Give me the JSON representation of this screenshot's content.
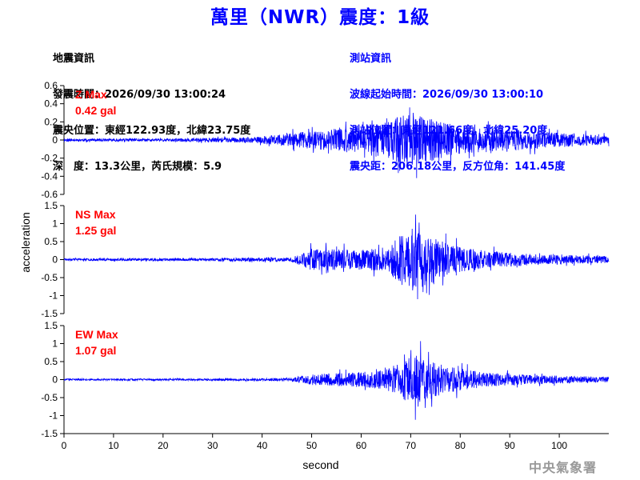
{
  "title": "萬里（NWR）震度：1級",
  "earthquake_info": {
    "heading": "地震資訊",
    "origin_time": "發震時間：2026/09/30 13:00:24",
    "epicenter": "震央位置：東經122.93度，北緯23.75度",
    "depth_magnitude": "深　度：13.3公里，芮氏規模：5.9"
  },
  "station_info": {
    "heading": "測站資訊",
    "wave_start": "波線起始時間：2026/09/30 13:00:10",
    "location": "測站位置：東經121.66度，北緯25.20度",
    "distance": "震央距：206.18公里，反方位角：141.45度"
  },
  "agency": "中央氣象署",
  "colors": {
    "trace": "#0000ff",
    "title": "#0000ff",
    "station_text": "#0000ff",
    "max_label": "#ff0000",
    "agency": "#999999"
  },
  "chart_data": {
    "type": "line",
    "xlabel": "second",
    "ylabel": "acceleration",
    "xlim": [
      0,
      110
    ],
    "x_ticks": [
      0,
      10,
      20,
      30,
      40,
      50,
      60,
      70,
      80,
      90,
      100
    ],
    "x_tick_labels": [
      "0",
      "10",
      "20",
      "30",
      "40",
      "50",
      "60",
      "70",
      "80",
      "90",
      "100"
    ],
    "grid": false,
    "panels": [
      {
        "name": "Z",
        "max_label": "Z Max",
        "max_value": "0.42 gal",
        "ylim": [
          -0.6,
          0.6
        ],
        "y_ticks": [
          0.6,
          0.4,
          0.2,
          0,
          -0.2,
          -0.4,
          -0.6
        ],
        "y_tick_labels": [
          "0.6",
          "0.4",
          "0.2",
          "0",
          "-0.2",
          "-0.4",
          "-0.6"
        ],
        "envelope": [
          [
            0,
            0.015
          ],
          [
            20,
            0.015
          ],
          [
            38,
            0.03
          ],
          [
            45,
            0.07
          ],
          [
            50,
            0.1
          ],
          [
            58,
            0.14
          ],
          [
            65,
            0.2
          ],
          [
            70,
            0.3
          ],
          [
            73,
            0.25
          ],
          [
            80,
            0.15
          ],
          [
            90,
            0.12
          ],
          [
            100,
            0.08
          ],
          [
            110,
            0.05
          ]
        ],
        "peak": {
          "t": 70.5,
          "value": 0.3
        },
        "peak_neg": {
          "t": 71.2,
          "value": -0.42
        },
        "seed": 11
      },
      {
        "name": "NS",
        "max_label": "NS Max",
        "max_value": "1.25 gal",
        "ylim": [
          -1.5,
          1.5
        ],
        "y_ticks": [
          1.5,
          1,
          0.5,
          0,
          -0.5,
          -1,
          -1.5
        ],
        "y_tick_labels": [
          "1.5",
          "1",
          "0.5",
          "0",
          "-0.5",
          "-1",
          "-1.5"
        ],
        "envelope": [
          [
            0,
            0.03
          ],
          [
            30,
            0.04
          ],
          [
            46,
            0.06
          ],
          [
            50,
            0.3
          ],
          [
            58,
            0.28
          ],
          [
            65,
            0.3
          ],
          [
            69,
            0.8
          ],
          [
            71,
            0.9
          ],
          [
            73,
            0.7
          ],
          [
            78,
            0.4
          ],
          [
            85,
            0.25
          ],
          [
            95,
            0.15
          ],
          [
            110,
            0.1
          ]
        ],
        "peak": {
          "t": 71.0,
          "value": 1.25
        },
        "peak_neg": {
          "t": 71.4,
          "value": -1.1
        },
        "seed": 23
      },
      {
        "name": "EW",
        "max_label": "EW Max",
        "max_value": "1.07 gal",
        "ylim": [
          -1.5,
          1.5
        ],
        "y_ticks": [
          1.5,
          1,
          0.5,
          0,
          -0.5,
          -1,
          -1.5
        ],
        "y_tick_labels": [
          "1.5",
          "1",
          "0.5",
          "0",
          "-0.5",
          "-1",
          "-1.5"
        ],
        "envelope": [
          [
            0,
            0.02
          ],
          [
            35,
            0.03
          ],
          [
            46,
            0.05
          ],
          [
            50,
            0.15
          ],
          [
            58,
            0.2
          ],
          [
            65,
            0.28
          ],
          [
            69,
            0.6
          ],
          [
            71,
            0.7
          ],
          [
            73,
            0.55
          ],
          [
            78,
            0.35
          ],
          [
            85,
            0.2
          ],
          [
            95,
            0.12
          ],
          [
            110,
            0.08
          ]
        ],
        "peak": {
          "t": 72.0,
          "value": 1.07
        },
        "peak_neg": {
          "t": 71.5,
          "value": -0.75
        },
        "seed": 37
      }
    ]
  }
}
